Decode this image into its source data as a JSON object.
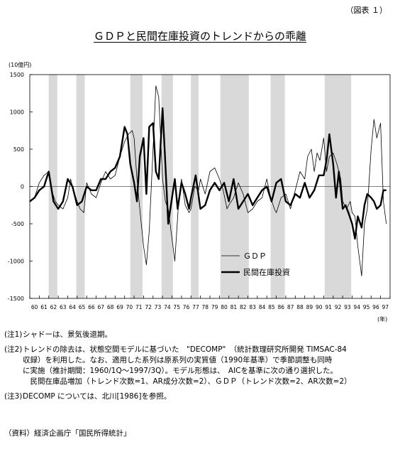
{
  "figure_label": "（図表 １）",
  "chart_data": {
    "type": "line",
    "title": "ＧＤＰと民間在庫投資のトレンドからの乖離",
    "ylabel": "(10億円)",
    "xlabel": "(年)",
    "ylim": [
      -1500,
      1500
    ],
    "yticks": [
      "1500",
      "1000",
      "500",
      "0",
      "-500",
      "-1000",
      "-1500"
    ],
    "ytick_values": [
      1500,
      1000,
      500,
      0,
      -500,
      -1000,
      -1500
    ],
    "xlim": [
      1960,
      1998
    ],
    "x_categories": [
      "60",
      "61",
      "62",
      "63",
      "64",
      "65",
      "66",
      "67",
      "68",
      "69",
      "70",
      "71",
      "72",
      "73",
      "74",
      "75",
      "76",
      "77",
      "78",
      "79",
      "80",
      "81",
      "82",
      "83",
      "84",
      "85",
      "86",
      "87",
      "88",
      "89",
      "90",
      "91",
      "92",
      "93",
      "94",
      "95",
      "96",
      "97"
    ],
    "shaded_periods": [
      {
        "start": 1962.0,
        "end": 1962.9
      },
      {
        "start": 1964.9,
        "end": 1965.8
      },
      {
        "start": 1970.6,
        "end": 1971.9
      },
      {
        "start": 1973.9,
        "end": 1975.1
      },
      {
        "start": 1977.0,
        "end": 1977.8
      },
      {
        "start": 1980.1,
        "end": 1983.1
      },
      {
        "start": 1985.4,
        "end": 1986.9
      },
      {
        "start": 1991.1,
        "end": 1993.9
      }
    ],
    "legend": {
      "position": "lower-right",
      "entries": [
        "ＧＤＰ",
        "民間在庫投資"
      ]
    },
    "series": [
      {
        "name": "ＧＤＰ",
        "style": "thin",
        "x": [
          1960.0,
          1960.5,
          1961.0,
          1961.5,
          1962.0,
          1962.3,
          1962.7,
          1963.0,
          1963.5,
          1964.0,
          1964.3,
          1964.6,
          1965.0,
          1965.3,
          1965.7,
          1966.0,
          1966.5,
          1967.0,
          1967.5,
          1968.0,
          1968.5,
          1969.0,
          1969.5,
          1970.0,
          1970.4,
          1970.8,
          1971.0,
          1971.3,
          1971.6,
          1972.0,
          1972.3,
          1972.6,
          1973.0,
          1973.3,
          1973.6,
          1974.0,
          1974.3,
          1974.6,
          1975.0,
          1975.3,
          1975.7,
          1976.0,
          1976.4,
          1976.8,
          1977.0,
          1977.4,
          1977.8,
          1978.0,
          1978.5,
          1979.0,
          1979.5,
          1980.0,
          1980.4,
          1980.8,
          1981.0,
          1981.5,
          1982.0,
          1982.5,
          1983.0,
          1983.5,
          1984.0,
          1984.5,
          1985.0,
          1985.4,
          1985.8,
          1986.0,
          1986.5,
          1987.0,
          1987.5,
          1988.0,
          1988.5,
          1989.0,
          1989.3,
          1989.7,
          1990.0,
          1990.3,
          1990.6,
          1991.0,
          1991.3,
          1991.6,
          1992.0,
          1992.4,
          1992.8,
          1993.0,
          1993.4,
          1993.8,
          1994.0,
          1994.3,
          1994.6,
          1995.0,
          1995.3,
          1995.6,
          1996.0,
          1996.3,
          1996.6,
          1997.0,
          1997.3,
          1997.6
        ],
        "values": [
          -200,
          -150,
          50,
          150,
          200,
          -50,
          -200,
          -250,
          -300,
          -150,
          100,
          -50,
          -200,
          -300,
          -350,
          50,
          -100,
          -150,
          50,
          200,
          100,
          150,
          400,
          600,
          700,
          750,
          650,
          100,
          -300,
          -800,
          -1050,
          -600,
          500,
          1350,
          1200,
          100,
          -200,
          -300,
          -700,
          -1000,
          -200,
          100,
          -250,
          -350,
          -300,
          0,
          -50,
          100,
          -100,
          200,
          250,
          100,
          -50,
          -300,
          -250,
          -150,
          50,
          -100,
          -350,
          -300,
          -200,
          -150,
          100,
          -150,
          -300,
          -350,
          -150,
          -100,
          -300,
          -50,
          200,
          100,
          400,
          500,
          200,
          450,
          350,
          650,
          200,
          400,
          450,
          300,
          100,
          -200,
          -300,
          -200,
          -350,
          -400,
          -800,
          -1200,
          -500,
          -300,
          500,
          900,
          650,
          850,
          -200,
          -500
        ]
      },
      {
        "name": "民間在庫投資",
        "style": "bold",
        "x": [
          1960.0,
          1960.5,
          1961.0,
          1961.5,
          1962.0,
          1962.5,
          1963.0,
          1963.5,
          1964.0,
          1964.5,
          1965.0,
          1965.5,
          1966.0,
          1966.5,
          1967.0,
          1967.5,
          1968.0,
          1968.5,
          1969.0,
          1969.5,
          1970.0,
          1970.3,
          1970.6,
          1971.0,
          1971.3,
          1971.6,
          1972.0,
          1972.3,
          1972.6,
          1973.0,
          1973.3,
          1973.6,
          1974.0,
          1974.3,
          1974.6,
          1975.0,
          1975.3,
          1975.6,
          1976.0,
          1976.4,
          1976.8,
          1977.0,
          1977.5,
          1978.0,
          1978.5,
          1979.0,
          1979.5,
          1980.0,
          1980.5,
          1981.0,
          1981.5,
          1982.0,
          1982.5,
          1983.0,
          1983.5,
          1984.0,
          1984.5,
          1985.0,
          1985.5,
          1986.0,
          1986.5,
          1987.0,
          1987.5,
          1988.0,
          1988.5,
          1989.0,
          1989.5,
          1990.0,
          1990.5,
          1991.0,
          1991.3,
          1991.6,
          1992.0,
          1992.3,
          1992.6,
          1993.0,
          1993.3,
          1993.6,
          1994.0,
          1994.3,
          1994.6,
          1995.0,
          1995.3,
          1995.6,
          1996.0,
          1996.3,
          1996.6,
          1997.0,
          1997.3,
          1997.6
        ],
        "values": [
          -200,
          -150,
          -50,
          0,
          200,
          -200,
          -300,
          -200,
          100,
          0,
          -250,
          -200,
          0,
          -50,
          -50,
          100,
          100,
          200,
          250,
          400,
          800,
          700,
          300,
          50,
          -200,
          400,
          650,
          -100,
          800,
          850,
          200,
          100,
          1050,
          300,
          -500,
          -150,
          100,
          -300,
          50,
          -100,
          -300,
          -150,
          150,
          -300,
          -250,
          -50,
          50,
          -50,
          50,
          -200,
          100,
          -300,
          -200,
          -100,
          -250,
          -150,
          -50,
          0,
          -200,
          50,
          100,
          -200,
          -250,
          -100,
          -150,
          50,
          -150,
          -50,
          150,
          150,
          350,
          700,
          300,
          -150,
          200,
          -300,
          -250,
          -350,
          -500,
          -700,
          -400,
          -550,
          -250,
          -100,
          -150,
          -200,
          -300,
          -250,
          -50,
          -50
        ]
      }
    ]
  },
  "notes": [
    {
      "num": "(注1)",
      "lines": [
        "シャドーは、景気後退期。"
      ]
    },
    {
      "num": "(注2)",
      "lines": [
        "トレンドの除去は、状態空間モデルに基づいた　\"DECOMP\"　（統計数理研究所開発 TIMSAC-84",
        "収録）を利用した。なお、適用した系列は原系列の実質値（1990年基準）で季節調整も同時",
        "に実施（推計期間：1960/1Q～1997/3Q）。モデル形態は、　AICを基準に次の通り選択した。",
        "　民間在庫品増加（トレンド次数=1、AR成分次数=2）、ＧＤＰ（トレンド次数=2、AR次数=2）"
      ]
    },
    {
      "num": "(注3)",
      "lines": [
        "DECOMP については、北川[1986]を参照。"
      ]
    }
  ],
  "source": "（資料）経済企画庁「国民所得統計」"
}
